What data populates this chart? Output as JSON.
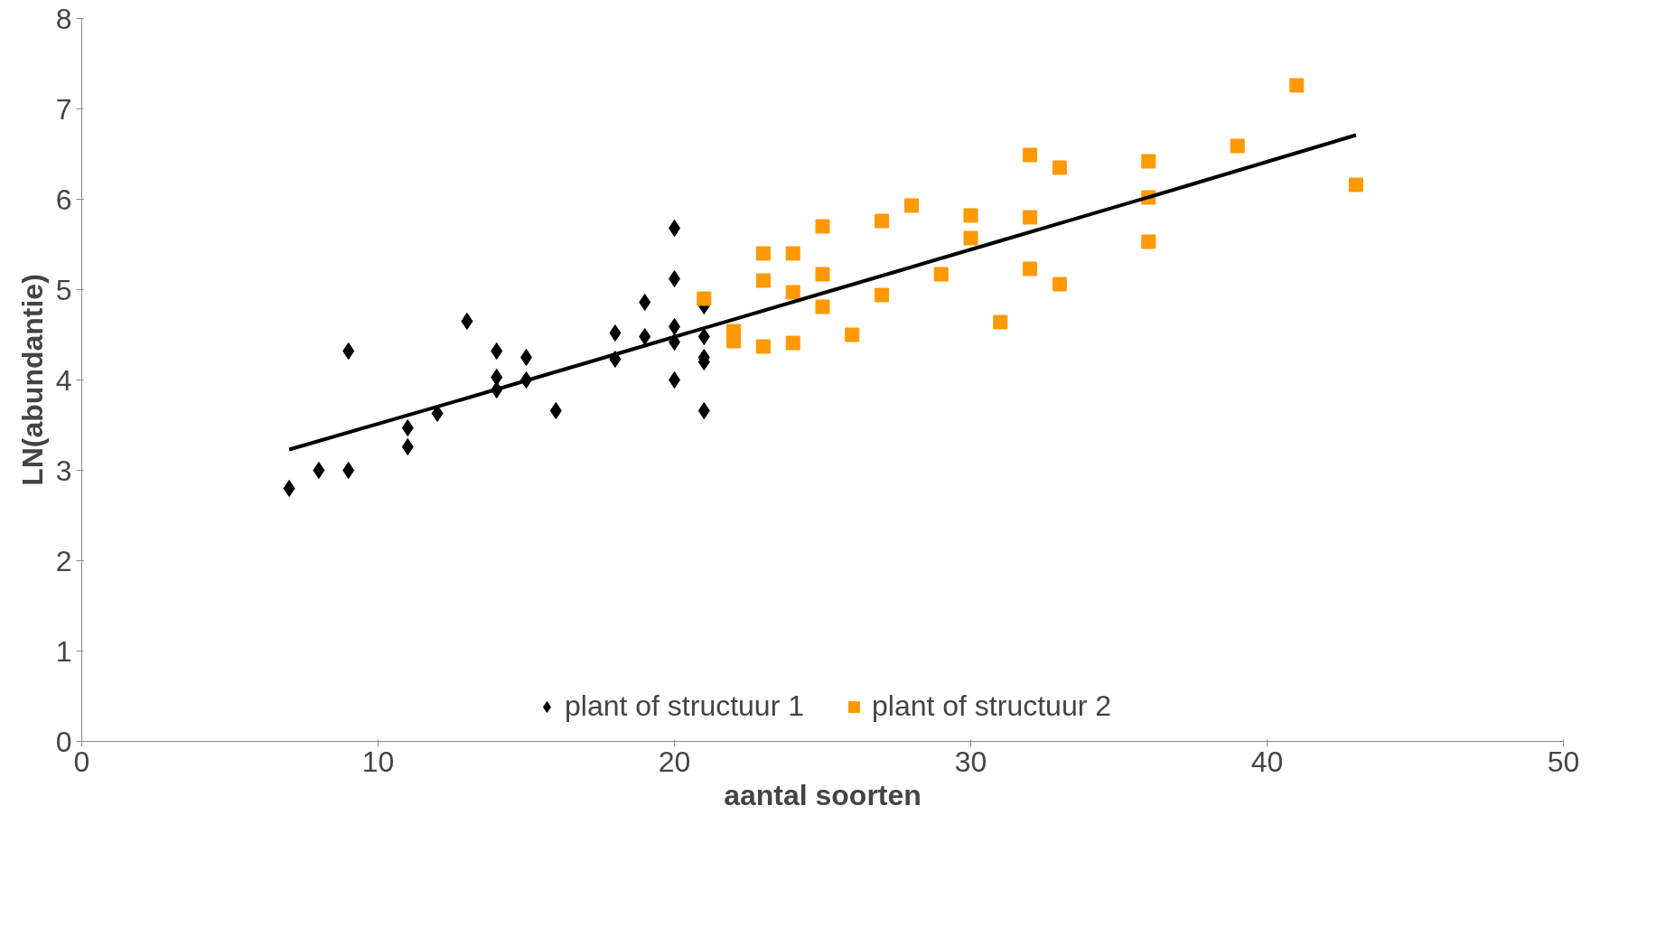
{
  "chart_data": {
    "type": "scatter",
    "xlabel": "aantal soorten",
    "ylabel": "LN(abundantie)",
    "xlim": [
      0,
      50
    ],
    "ylim": [
      0,
      8
    ],
    "xticks": [
      0,
      10,
      20,
      30,
      40,
      50
    ],
    "yticks": [
      0,
      1,
      2,
      3,
      4,
      5,
      6,
      7,
      8
    ],
    "grid": false,
    "legend": "bottom",
    "series": [
      {
        "name": "plant of structuur 1",
        "color": "#000000",
        "marker": "diamond",
        "x": [
          7,
          8,
          9,
          9,
          11,
          11,
          12,
          13,
          14,
          14,
          14,
          15,
          15,
          16,
          18,
          18,
          19,
          19,
          20,
          20,
          20,
          20,
          20,
          21,
          21,
          21,
          21,
          21
        ],
        "values": [
          2.8,
          3.0,
          3.0,
          4.32,
          3.47,
          3.26,
          3.63,
          4.65,
          4.32,
          4.03,
          3.89,
          4.25,
          4.0,
          3.66,
          4.52,
          4.23,
          4.86,
          4.48,
          5.68,
          5.12,
          4.59,
          4.42,
          4.0,
          4.82,
          4.48,
          4.25,
          4.2,
          3.66
        ]
      },
      {
        "name": "plant of structuur 2",
        "color": "#ff9900",
        "marker": "square",
        "x": [
          21,
          22,
          22,
          23,
          23,
          23,
          24,
          24,
          24,
          25,
          25,
          25,
          26,
          27,
          27,
          28,
          29,
          30,
          30,
          31,
          32,
          32,
          32,
          33,
          33,
          36,
          36,
          36,
          39,
          41,
          43
        ],
        "values": [
          4.9,
          4.54,
          4.43,
          5.4,
          5.1,
          4.37,
          5.4,
          4.97,
          4.41,
          5.7,
          5.17,
          4.81,
          4.5,
          5.76,
          4.94,
          5.93,
          5.17,
          5.82,
          5.57,
          4.64,
          6.49,
          5.8,
          5.23,
          6.35,
          5.06,
          6.42,
          6.02,
          5.53,
          6.59,
          7.26,
          6.16
        ]
      },
      {
        "type": "line",
        "color": "#000000",
        "marker": "none",
        "line_style": "solid",
        "x": [
          7,
          13,
          19,
          25,
          31,
          37,
          43
        ],
        "values": [
          3.23,
          3.8,
          4.38,
          4.96,
          5.54,
          6.12,
          6.71
        ]
      }
    ]
  }
}
